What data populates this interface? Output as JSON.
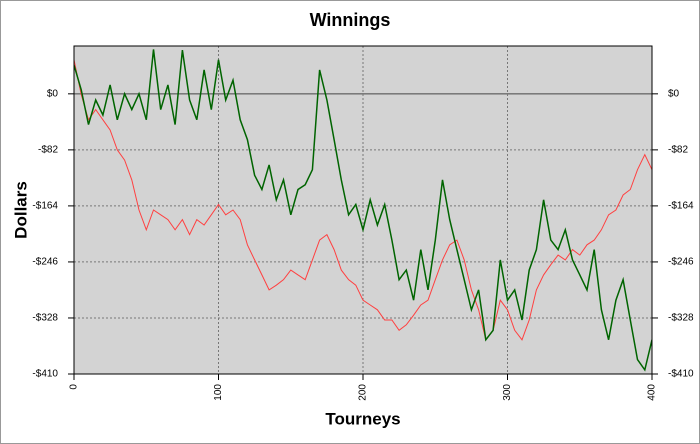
{
  "chart_data": {
    "type": "line",
    "title": "Winnings",
    "xlabel": "Tourneys",
    "ylabel": "Dollars",
    "x": [
      0,
      5,
      10,
      15,
      20,
      25,
      30,
      35,
      40,
      45,
      50,
      55,
      60,
      65,
      70,
      75,
      80,
      85,
      90,
      95,
      100,
      105,
      110,
      115,
      120,
      125,
      130,
      135,
      140,
      145,
      150,
      155,
      160,
      165,
      170,
      175,
      180,
      185,
      190,
      195,
      200,
      205,
      210,
      215,
      220,
      225,
      230,
      235,
      240,
      245,
      250,
      255,
      260,
      265,
      270,
      275,
      280,
      285,
      290,
      295,
      300,
      305,
      310,
      315,
      320,
      325,
      330,
      335,
      340,
      345,
      350,
      355,
      360,
      365,
      370,
      375,
      380,
      385,
      390,
      395,
      400
    ],
    "series": [
      {
        "name": "green",
        "color": "#006400",
        "values": [
          42,
          6,
          -45,
          -9,
          -31,
          13,
          -38,
          0,
          -23,
          0,
          -38,
          65,
          -23,
          13,
          -45,
          64,
          -9,
          -38,
          35,
          -23,
          50,
          -9,
          20,
          -38,
          -67,
          -119,
          -140,
          -104,
          -155,
          -126,
          -177,
          -140,
          -133,
          -111,
          35,
          -9,
          -67,
          -126,
          -177,
          -162,
          -199,
          -155,
          -192,
          -162,
          -214,
          -272,
          -258,
          -302,
          -228,
          -287,
          -214,
          -126,
          -184,
          -228,
          -272,
          -316,
          -287,
          -360,
          -346,
          -243,
          -302,
          -287,
          -331,
          -258,
          -228,
          -155,
          -214,
          -228,
          -199,
          -243,
          -265,
          -287,
          -228,
          -316,
          -360,
          -302,
          -272,
          -331,
          -389,
          -404,
          -360
        ]
      },
      {
        "name": "red",
        "color": "#ff4040",
        "values": [
          50,
          -1,
          -38,
          -23,
          -38,
          -53,
          -82,
          -97,
          -126,
          -170,
          -199,
          -170,
          -177,
          -184,
          -199,
          -184,
          -206,
          -184,
          -192,
          -177,
          -162,
          -177,
          -170,
          -184,
          -221,
          -243,
          -265,
          -287,
          -280,
          -272,
          -258,
          -265,
          -272,
          -243,
          -214,
          -206,
          -228,
          -258,
          -272,
          -280,
          -302,
          -309,
          -316,
          -331,
          -331,
          -346,
          -338,
          -324,
          -309,
          -302,
          -272,
          -243,
          -221,
          -214,
          -243,
          -287,
          -316,
          -360,
          -346,
          -302,
          -316,
          -346,
          -360,
          -331,
          -287,
          -265,
          -250,
          -236,
          -243,
          -228,
          -236,
          -221,
          -214,
          -199,
          -177,
          -170,
          -148,
          -140,
          -111,
          -89,
          -111
        ]
      }
    ],
    "xlim": [
      0,
      400
    ],
    "xticks": [
      0,
      100,
      200,
      300,
      400
    ],
    "ylim": [
      -410,
      70
    ],
    "yticks": [
      {
        "value": 0,
        "label": "$0"
      },
      {
        "value": -82,
        "label": "-$82"
      },
      {
        "value": -164,
        "label": "-$164"
      },
      {
        "value": -246,
        "label": "-$246"
      },
      {
        "value": -328,
        "label": "-$328"
      },
      {
        "value": -410,
        "label": "-$410"
      }
    ],
    "grid": true
  }
}
